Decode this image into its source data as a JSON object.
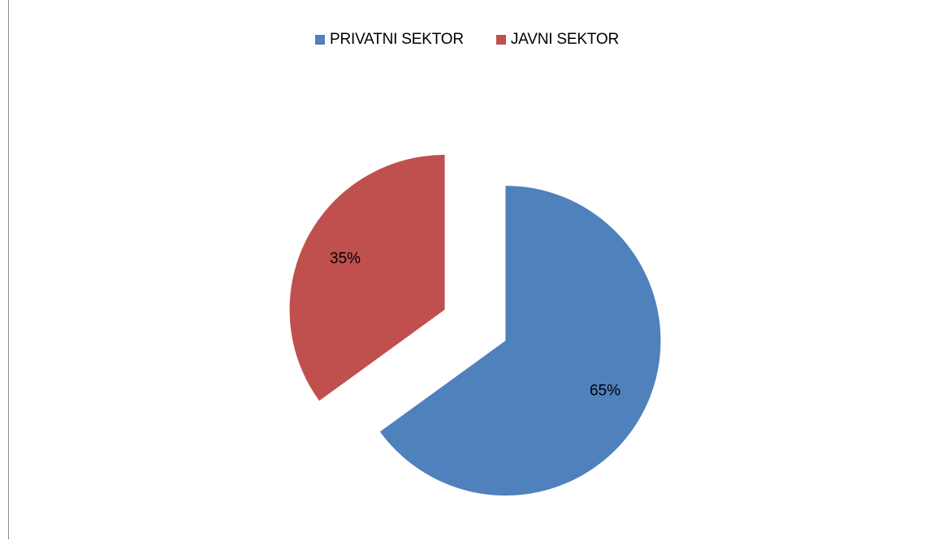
{
  "chart_data": {
    "type": "pie",
    "title": "",
    "categories": [
      "PRIVATNI SEKTOR",
      "JAVNI SEKTOR"
    ],
    "values": [
      65,
      35
    ],
    "data_labels": [
      "65%",
      "35%"
    ],
    "colors": [
      "#4f81bd",
      "#c0504d"
    ],
    "exploded": true,
    "legend_position": "top"
  }
}
